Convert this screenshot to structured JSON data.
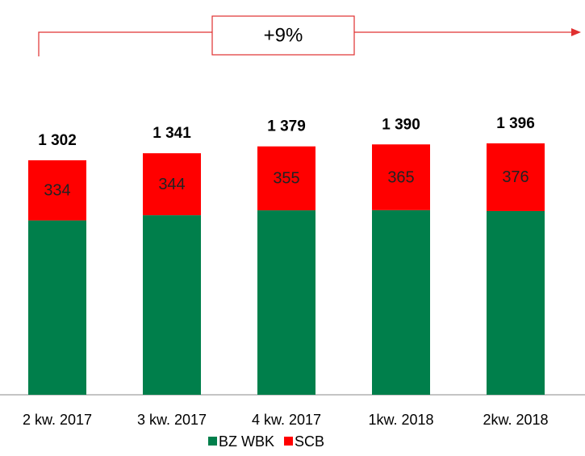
{
  "chart_data": {
    "type": "stacked_bar",
    "annotation": "+9%",
    "categories": [
      "2 kw. 2017",
      "3 kw. 2017",
      "4 kw. 2017",
      "1kw. 2018",
      "2kw. 2018"
    ],
    "series": [
      {
        "name": "BZ WBK",
        "color": "#007f4b",
        "values": [
          968,
          997,
          1024,
          1025,
          1020
        ]
      },
      {
        "name": "SCB",
        "color": "#ff0000",
        "values": [
          334,
          344,
          355,
          365,
          376
        ]
      }
    ],
    "totals": [
      1302,
      1341,
      1379,
      1390,
      1396
    ],
    "total_labels": [
      "1 302",
      "1 341",
      "1 379",
      "1 390",
      "1 396"
    ],
    "ylim": [
      0,
      1400
    ]
  }
}
